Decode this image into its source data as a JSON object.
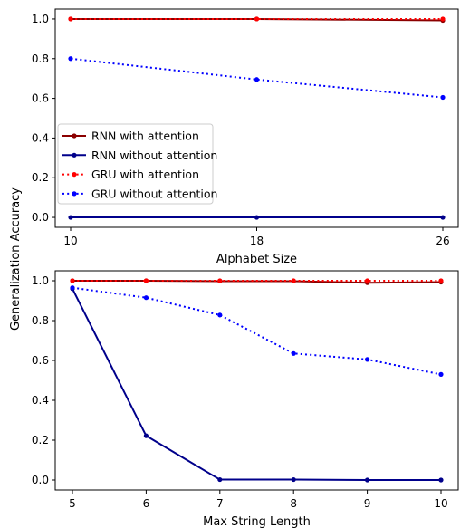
{
  "figure": {
    "shared_ylabel": "Generalization Accuracy"
  },
  "chart_data": [
    {
      "type": "line",
      "xlabel": "Alphabet Size",
      "ylabel": "Generalization Accuracy",
      "x": [
        10,
        18,
        26
      ],
      "x_ticks": [
        "10",
        "18",
        "26"
      ],
      "ylim": [
        -0.05,
        1.05
      ],
      "y_ticks": [
        "0.0",
        "0.2",
        "0.4",
        "0.6",
        "0.8",
        "1.0"
      ],
      "grid": false,
      "legend": {
        "placement": "lower-left",
        "entries": [
          "RNN with attention",
          "RNN without attention",
          "GRU with attention",
          "GRU without attention"
        ]
      },
      "series": [
        {
          "name": "RNN with attention",
          "values": [
            1.0,
            1.0,
            0.993
          ],
          "color": "#8b0000",
          "style": "solid"
        },
        {
          "name": "RNN without attention",
          "values": [
            0.0,
            0.0,
            0.0
          ],
          "color": "#00008b",
          "style": "solid"
        },
        {
          "name": "GRU with attention",
          "values": [
            1.0,
            1.0,
            1.0
          ],
          "color": "#ff0000",
          "style": "dotted"
        },
        {
          "name": "GRU without attention",
          "values": [
            0.8,
            0.695,
            0.605
          ],
          "color": "#0000ff",
          "style": "dotted"
        }
      ]
    },
    {
      "type": "line",
      "xlabel": "Max String Length",
      "ylabel": "Generalization Accuracy",
      "x": [
        5,
        6,
        7,
        8,
        9,
        10
      ],
      "x_ticks": [
        "5",
        "6",
        "7",
        "8",
        "9",
        "10"
      ],
      "ylim": [
        -0.05,
        1.05
      ],
      "y_ticks": [
        "0.0",
        "0.2",
        "0.4",
        "0.6",
        "0.8",
        "1.0"
      ],
      "grid": false,
      "series": [
        {
          "name": "RNN with attention",
          "values": [
            1.0,
            1.0,
            0.998,
            0.998,
            0.99,
            0.993
          ],
          "color": "#8b0000",
          "style": "solid"
        },
        {
          "name": "RNN without attention",
          "values": [
            0.96,
            0.222,
            0.002,
            0.002,
            0.0,
            0.0
          ],
          "color": "#00008b",
          "style": "solid"
        },
        {
          "name": "GRU with attention",
          "values": [
            1.0,
            1.0,
            1.0,
            1.0,
            1.0,
            1.0
          ],
          "color": "#ff0000",
          "style": "dotted"
        },
        {
          "name": "GRU without attention",
          "values": [
            0.965,
            0.915,
            0.828,
            0.635,
            0.605,
            0.53
          ],
          "color": "#0000ff",
          "style": "dotted"
        }
      ]
    }
  ]
}
